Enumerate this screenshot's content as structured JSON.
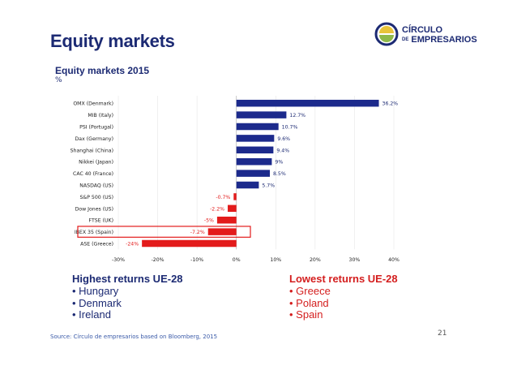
{
  "slide": {
    "title": "Equity markets",
    "logo": {
      "line1": "CÍRCULO",
      "line2_prefix": "DE",
      "line2_main": "EMPRESARIOS"
    },
    "source": "Source: Círculo de empresarios based on Bloomberg, 2015",
    "page_number": "21"
  },
  "highest": {
    "title": "Highest returns UE-28",
    "items": [
      "Hungary",
      "Denmark",
      "Ireland"
    ]
  },
  "lowest": {
    "title": "Lowest returns UE-28",
    "items": [
      "Greece",
      "Poland",
      "Spain"
    ]
  },
  "colors": {
    "positive": "#1c2a8c",
    "negative": "#e31b1b",
    "highlight_box": "#e31b1b",
    "brand_blue": "#1c2a73",
    "logo_yellow": "#e8c43a",
    "logo_green": "#8fb94a"
  },
  "chart_data": {
    "type": "bar",
    "orientation": "horizontal",
    "title": "Equity markets 2015",
    "unit": "%",
    "categories": [
      "OMX (Denmark)",
      "MIB (Italy)",
      "PSI (Portugal)",
      "Dax (Germany)",
      "Shanghai (China)",
      "Nikkei (Japan)",
      "CAC 40 (France)",
      "NASDAQ (US)",
      "S&P 500 (US)",
      "Dow Jones (US)",
      "FTSE (UK)",
      "IBEX 35 (Spain)",
      "ASE (Greece)"
    ],
    "values": [
      36.2,
      12.7,
      10.7,
      9.6,
      9.4,
      9.0,
      8.5,
      5.7,
      -0.7,
      -2.2,
      -4.9,
      -7.2,
      -24.0
    ],
    "value_labels": [
      "36.2%",
      "12.7%",
      "10.7%",
      "9.6%",
      "9.4%",
      "9%",
      "8.5%",
      "5.7%",
      "-0.7%",
      "-2.2%",
      "-5%",
      "-7.2%",
      "-24%"
    ],
    "xlim": [
      -30,
      40
    ],
    "xticks": [
      -30,
      -20,
      -10,
      0,
      10,
      20,
      30,
      40
    ],
    "xtick_labels": [
      "-30%",
      "-20%",
      "-10%",
      "0%",
      "10%",
      "20%",
      "30%",
      "40%"
    ],
    "highlighted_category": "IBEX 35 (Spain)",
    "grid": "vertical, faint",
    "legend": "none"
  }
}
